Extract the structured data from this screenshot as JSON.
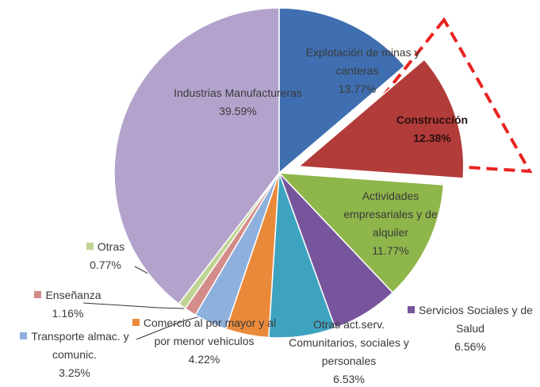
{
  "chart_data": {
    "type": "pie",
    "categories": [
      "Explotación de minas y canteras",
      "Construcción",
      "Actividades empresariales y de alquiler",
      "Servicios Sociales y de Salud",
      "Otras act.serv. Comunitarios, sociales y personales",
      "Comercio al por mayor y al por menor vehiculos",
      "Transporte almac. y comunic.",
      "Enseñanza",
      "Otras",
      "Industrias Manufactureras"
    ],
    "values": [
      13.77,
      12.38,
      11.77,
      6.56,
      6.53,
      4.22,
      3.25,
      1.16,
      0.77,
      39.59
    ],
    "value_labels": [
      "13.77%",
      "12.38%",
      "11.77%",
      "6.56%",
      "6.53%",
      "4.22%",
      "3.25%",
      "1.16%",
      "0.77%",
      "39.59%"
    ],
    "colors": [
      "#3f6fb0",
      "#b23c3a",
      "#8fb64a",
      "#76559c",
      "#3da3bf",
      "#e98a3a",
      "#8eb0dd",
      "#d48c8a",
      "#bfd494",
      "#b3a3cc"
    ],
    "exploded": [
      "Construcción"
    ]
  }
}
